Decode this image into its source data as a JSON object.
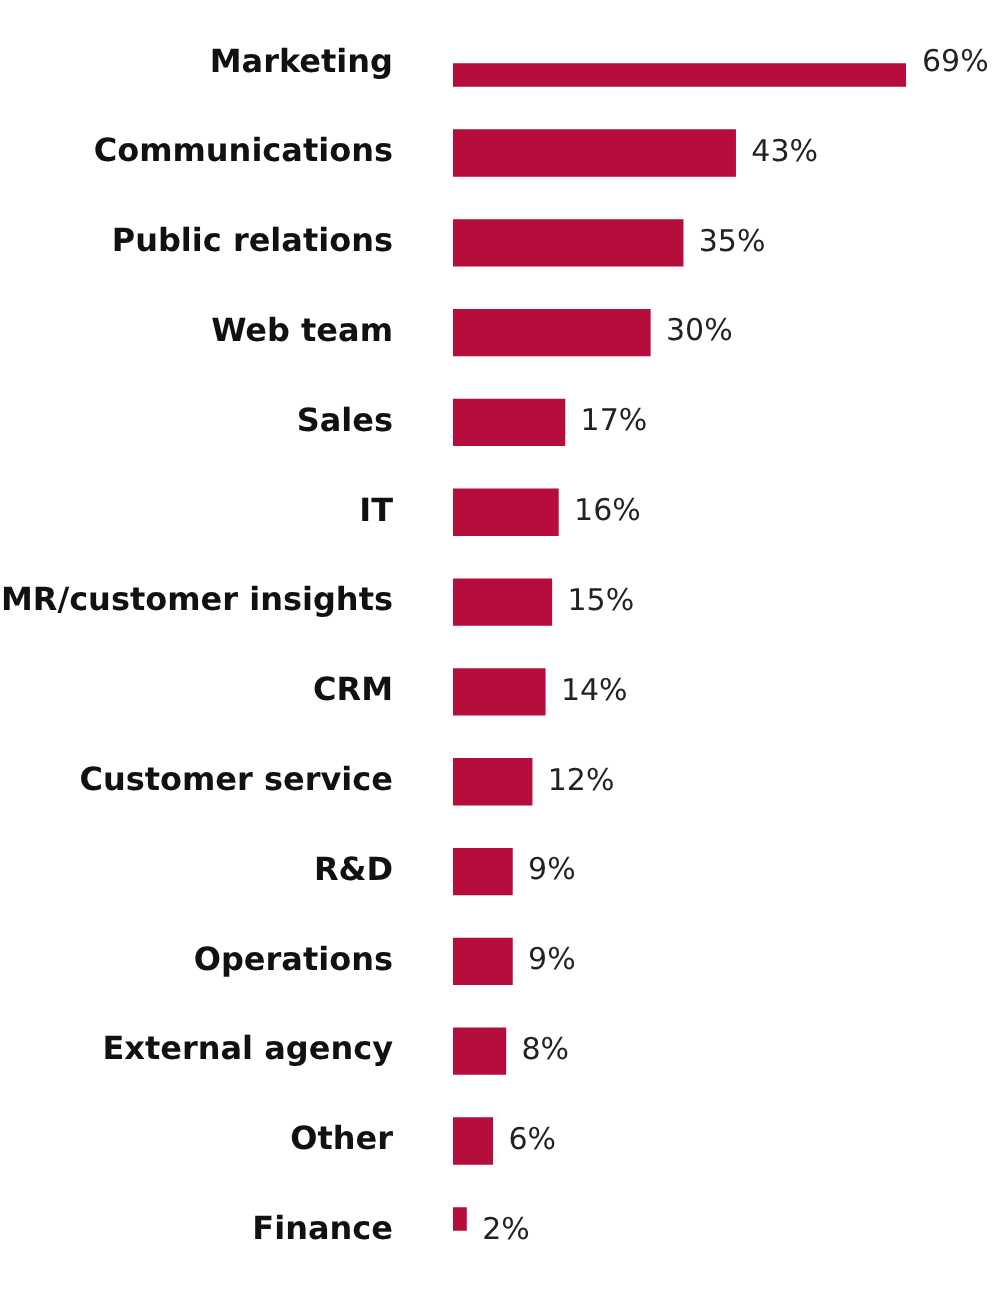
{
  "chart_data": {
    "type": "bar",
    "orientation": "horizontal",
    "categories": [
      "Marketing",
      "Communications",
      "Public relations",
      "Web team",
      "Sales",
      "IT",
      "MR/customer insights",
      "CRM",
      "Customer service",
      "R&D",
      "Operations",
      "External agency",
      "Other",
      "Finance"
    ],
    "values": [
      69,
      43,
      35,
      30,
      17,
      16,
      15,
      14,
      12,
      9,
      9,
      8,
      6,
      2
    ],
    "value_labels": [
      "69%",
      "43%",
      "35%",
      "30%",
      "17%",
      "16%",
      "15%",
      "14%",
      "12%",
      "9%",
      "9%",
      "8%",
      "6%",
      "2%"
    ],
    "color": "#b50d3c"
  }
}
